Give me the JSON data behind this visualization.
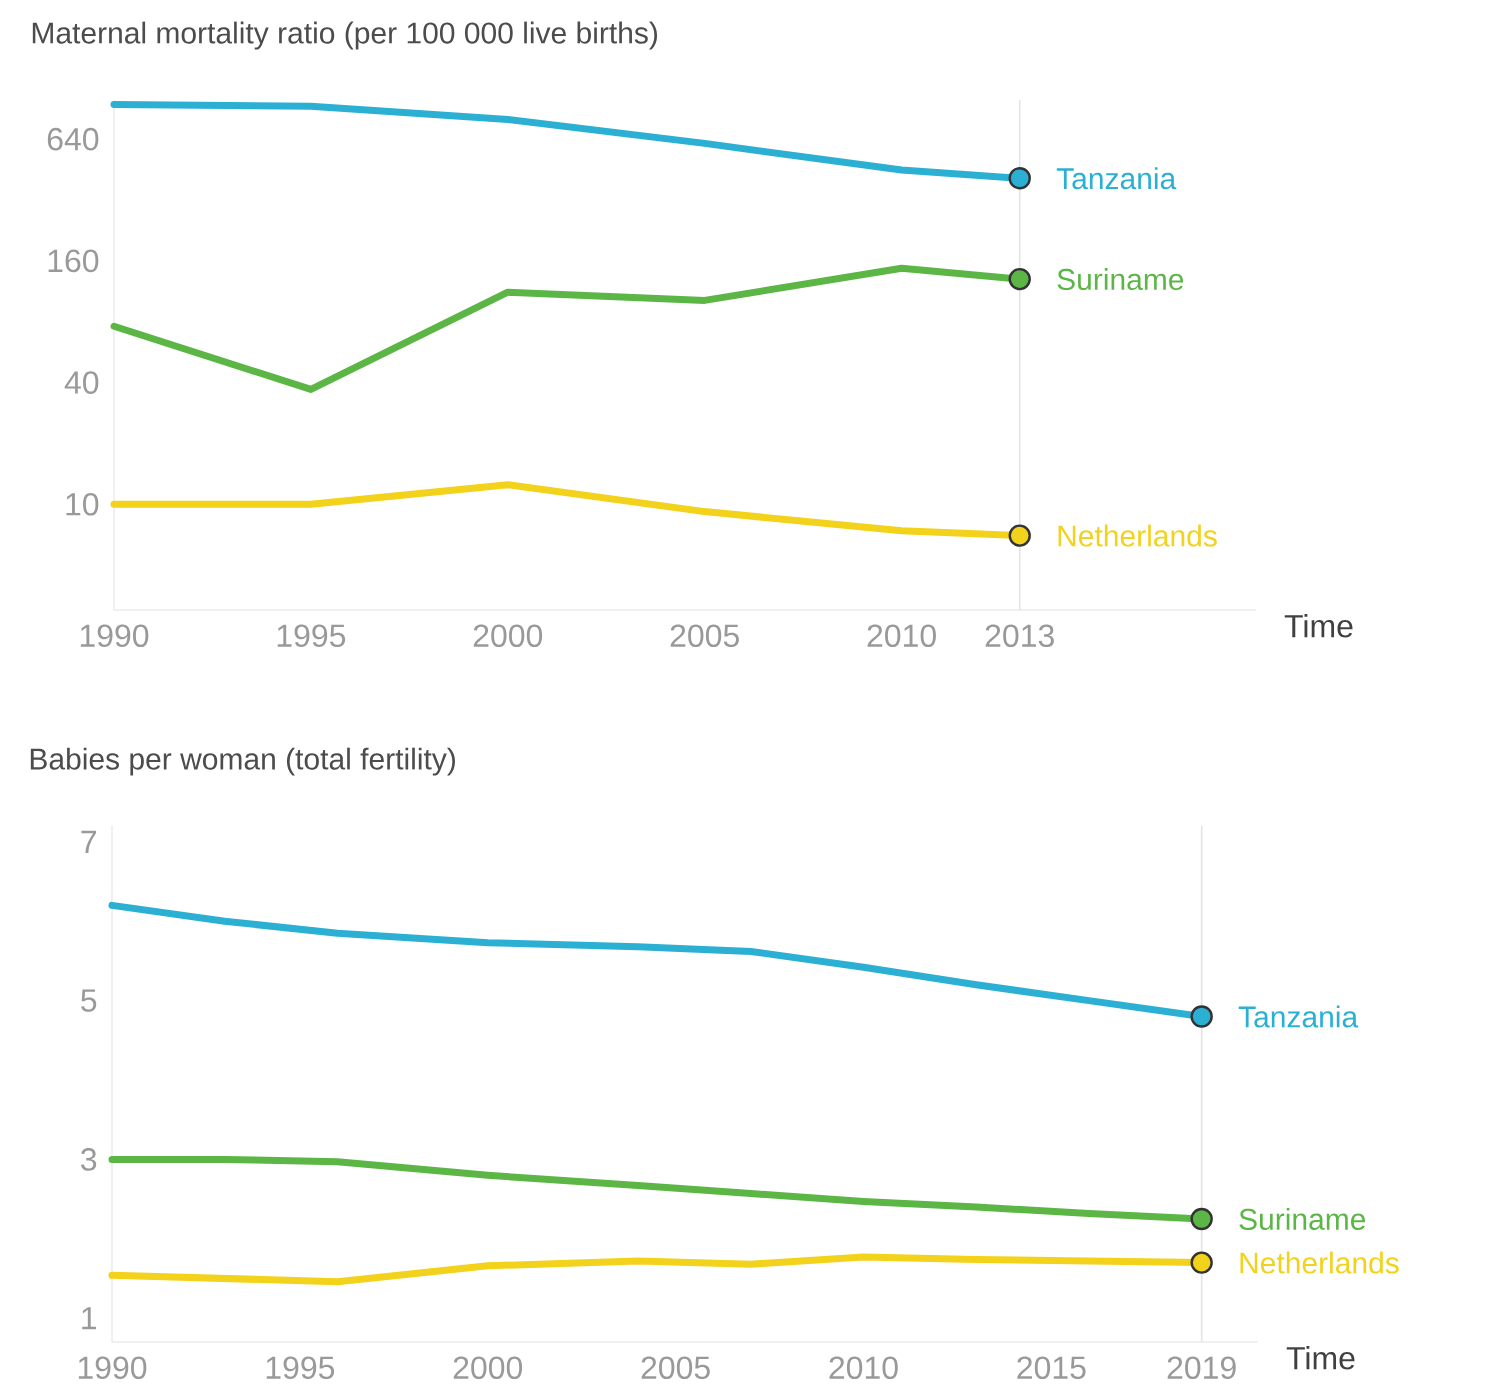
{
  "chart_data": [
    {
      "type": "line",
      "title": "Maternal mortality ratio (per 100 000 live births)",
      "xlabel": "Time",
      "log": true,
      "xlim": [
        1990,
        2019
      ],
      "xticks": [
        1990,
        1995,
        2000,
        2005,
        2010,
        2013
      ],
      "ylim": [
        3,
        1000
      ],
      "yticks": [
        10,
        40,
        160,
        640
      ],
      "x": [
        1990,
        1995,
        2000,
        2005,
        2010,
        2013
      ],
      "ref_lines": [
        {
          "axis": "x",
          "value": 2013,
          "color": "#e4e4e4"
        }
      ],
      "series": [
        {
          "name": "Tanzania",
          "color": "#2bb0d4",
          "values": [
            950,
            930,
            800,
            610,
            450,
            410
          ]
        },
        {
          "name": "Suriname",
          "color": "#5bb645",
          "values": [
            76,
            37,
            112,
            102,
            147,
            130
          ]
        },
        {
          "name": "Netherlands",
          "color": "#f2d21b",
          "values": [
            10,
            10,
            12.5,
            9.2,
            7.4,
            7
          ]
        }
      ]
    },
    {
      "type": "line",
      "title": "Babies per woman (total fertility)",
      "xlabel": "Time",
      "xlim": [
        1990,
        2020.5
      ],
      "xticks": [
        1990,
        1995,
        2000,
        2005,
        2010,
        2015,
        2019
      ],
      "ylim": [
        0.7,
        7.2
      ],
      "yticks": [
        1,
        3,
        5,
        7
      ],
      "x": [
        1990,
        1993,
        1996,
        2000,
        2004,
        2007,
        2010,
        2013,
        2016,
        2019
      ],
      "ref_lines": [
        {
          "axis": "x",
          "value": 2019,
          "color": "#e4e4e4"
        }
      ],
      "series": [
        {
          "name": "Tanzania",
          "color": "#2bb0d4",
          "values": [
            6.2,
            6.0,
            5.85,
            5.73,
            5.68,
            5.62,
            5.42,
            5.2,
            5.0,
            4.8
          ]
        },
        {
          "name": "Suriname",
          "color": "#5bb645",
          "values": [
            3.0,
            3.0,
            2.97,
            2.8,
            2.67,
            2.57,
            2.47,
            2.4,
            2.32,
            2.25
          ]
        },
        {
          "name": "Netherlands",
          "color": "#f2d21b",
          "values": [
            1.54,
            1.5,
            1.46,
            1.66,
            1.72,
            1.68,
            1.77,
            1.74,
            1.72,
            1.7
          ]
        }
      ]
    }
  ]
}
